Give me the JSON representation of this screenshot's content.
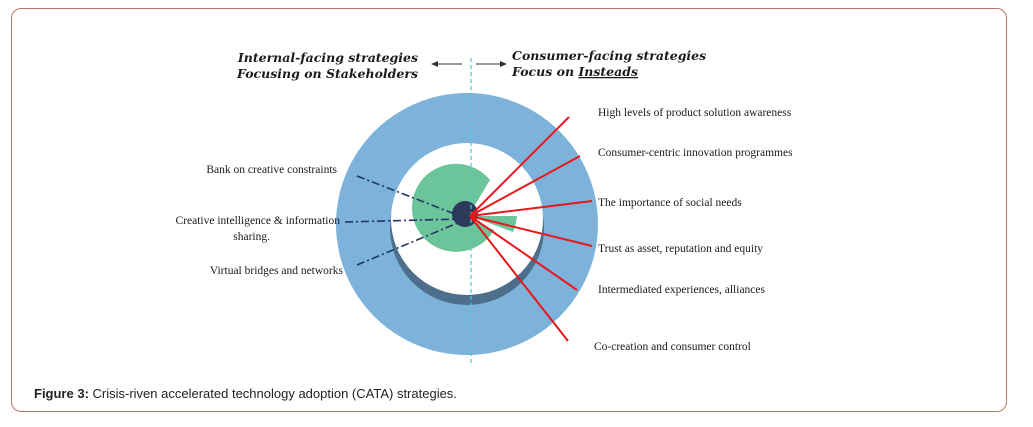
{
  "header": {
    "internal_line1": "Internal-facing strategies",
    "internal_line2": "Focusing on Stakeholders",
    "consumer_line1": "Consumer-facing strategies",
    "consumer_line2_prefix": "Focus on ",
    "consumer_line2_underlined": "Insteads"
  },
  "left_labels": [
    {
      "line1": "Bank on creative constraints",
      "line2": ""
    },
    {
      "line1": "Creative intelligence & information",
      "line2": "sharing."
    },
    {
      "line1": "Virtual bridges and networks",
      "line2": ""
    }
  ],
  "right_labels": [
    "High levels of product solution awareness",
    "Consumer-centric innovation programmes",
    "The importance of social needs",
    "Trust as asset, reputation and equity",
    "Intermediated experiences, alliances",
    "Co-creation and consumer control"
  ],
  "caption": {
    "label": "Figure 3:",
    "text": " Crisis-riven accelerated technology adoption (CATA) strategies."
  },
  "colors": {
    "outer_ring": "#7db2db",
    "ring_shadow": "#4d6f8c",
    "green_core": "#6cc49b",
    "dark_center": "#2e3a5c",
    "red_lines": "#e8171b",
    "navy_dashes": "#1f3566",
    "divider": "#4ecdc4"
  }
}
